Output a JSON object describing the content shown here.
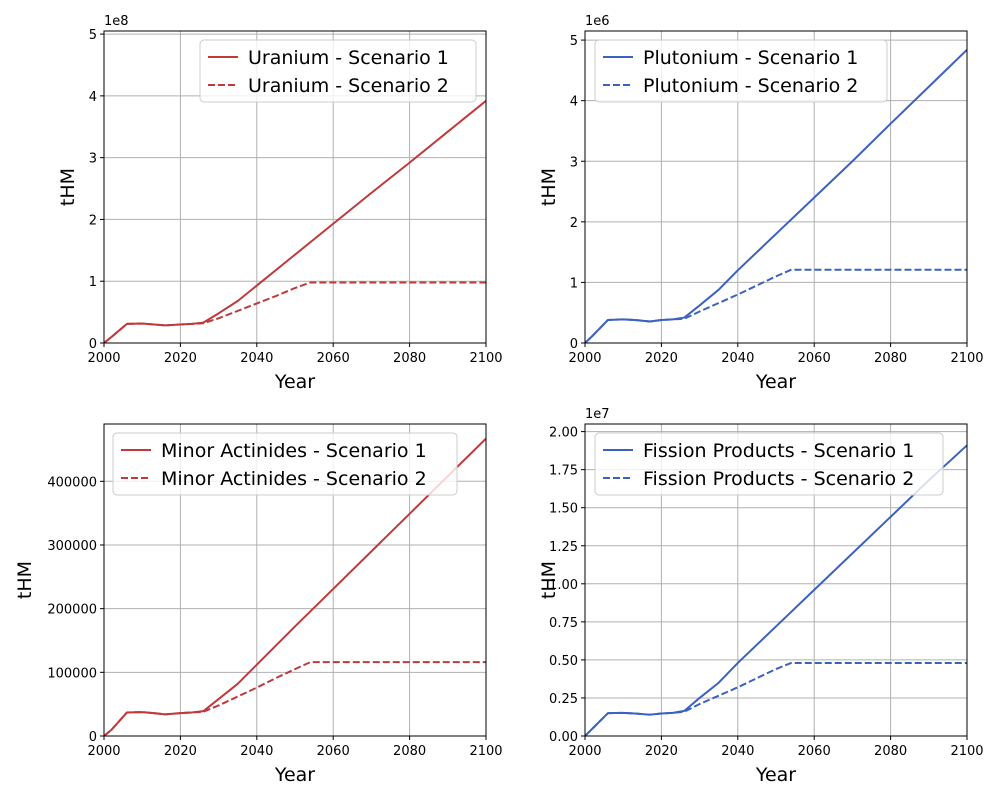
{
  "colors": {
    "red": "#c0393b",
    "blue": "#3b62c0"
  },
  "chart_data": [
    {
      "type": "line",
      "xlabel": "Year",
      "ylabel": "tHM",
      "xlim": [
        2000,
        2100
      ],
      "ylim": [
        0,
        505000000
      ],
      "x_ticks": [
        2000,
        2020,
        2040,
        2060,
        2080,
        2100
      ],
      "x_tick_labels": [
        "2000",
        "2020",
        "2040",
        "2060",
        "2080",
        "2100"
      ],
      "y_ticks": [
        0,
        100000000,
        200000000,
        300000000,
        400000000,
        500000000
      ],
      "y_tick_labels": [
        "0",
        "1",
        "2",
        "3",
        "4",
        "5"
      ],
      "y_offset_label": "1e8",
      "grid": true,
      "legend_position": "top-right",
      "color": "#c0393b",
      "series": [
        {
          "name": "Uranium - Scenario 1",
          "style": "solid",
          "x": [
            2000,
            2002,
            2006,
            2010,
            2013,
            2016,
            2020,
            2023,
            2026,
            2030,
            2035,
            2040,
            2050,
            2060,
            2070,
            2080,
            2090,
            2100
          ],
          "y": [
            0,
            10000000,
            31000000,
            31500000,
            30000000,
            28500000,
            30000000,
            31000000,
            33000000,
            48000000,
            68000000,
            93000000,
            143000000,
            193000000,
            243000000,
            292000000,
            342000000,
            392000000
          ]
        },
        {
          "name": "Uranium - Scenario 2",
          "style": "dashed",
          "x": [
            2000,
            2002,
            2006,
            2010,
            2013,
            2016,
            2020,
            2023,
            2026,
            2030,
            2035,
            2040,
            2045,
            2050,
            2054,
            2060,
            2070,
            2080,
            2090,
            2100
          ],
          "y": [
            0,
            10000000,
            31000000,
            31500000,
            30000000,
            28500000,
            30000000,
            31000000,
            32000000,
            40000000,
            52000000,
            64000000,
            76000000,
            89000000,
            98000000,
            98000000,
            98000000,
            98000000,
            98000000,
            98000000
          ]
        }
      ]
    },
    {
      "type": "line",
      "xlabel": "Year",
      "ylabel": "tHM",
      "xlim": [
        2000,
        2100
      ],
      "ylim": [
        0,
        5150000
      ],
      "x_ticks": [
        2000,
        2020,
        2040,
        2060,
        2080,
        2100
      ],
      "x_tick_labels": [
        "2000",
        "2020",
        "2040",
        "2060",
        "2080",
        "2100"
      ],
      "y_ticks": [
        0,
        1000000,
        2000000,
        3000000,
        4000000,
        5000000
      ],
      "y_tick_labels": [
        "0",
        "1",
        "2",
        "3",
        "4",
        "5"
      ],
      "y_offset_label": "1e6",
      "grid": true,
      "legend_position": "top-left",
      "color": "#3b62c0",
      "series": [
        {
          "name": "Plutonium - Scenario 1",
          "style": "solid",
          "x": [
            2000,
            2002,
            2006,
            2010,
            2013,
            2017,
            2020,
            2023,
            2026,
            2030,
            2035,
            2040,
            2050,
            2060,
            2070,
            2080,
            2090,
            2100
          ],
          "y": [
            0,
            120000,
            380000,
            390000,
            380000,
            355000,
            380000,
            390000,
            420000,
            620000,
            880000,
            1200000,
            1800000,
            2400000,
            3000000,
            3620000,
            4230000,
            4840000
          ]
        },
        {
          "name": "Plutonium - Scenario 2",
          "style": "dashed",
          "x": [
            2000,
            2002,
            2006,
            2010,
            2013,
            2017,
            2020,
            2023,
            2026,
            2030,
            2035,
            2040,
            2045,
            2050,
            2054,
            2060,
            2070,
            2080,
            2090,
            2100
          ],
          "y": [
            0,
            120000,
            380000,
            390000,
            380000,
            355000,
            380000,
            390000,
            400000,
            520000,
            660000,
            800000,
            950000,
            1100000,
            1210000,
            1210000,
            1210000,
            1210000,
            1210000,
            1210000
          ]
        }
      ]
    },
    {
      "type": "line",
      "xlabel": "Year",
      "ylabel": "tHM",
      "xlim": [
        2000,
        2100
      ],
      "ylim": [
        0,
        490000
      ],
      "x_ticks": [
        2000,
        2020,
        2040,
        2060,
        2080,
        2100
      ],
      "x_tick_labels": [
        "2000",
        "2020",
        "2040",
        "2060",
        "2080",
        "2100"
      ],
      "y_ticks": [
        0,
        100000,
        200000,
        300000,
        400000
      ],
      "y_tick_labels": [
        "0",
        "100000",
        "200000",
        "300000",
        "400000"
      ],
      "y_offset_label": "",
      "grid": true,
      "legend_position": "top-left",
      "color": "#c0393b",
      "series": [
        {
          "name": "Minor Actinides - Scenario 1",
          "style": "solid",
          "x": [
            2000,
            2002,
            2006,
            2010,
            2013,
            2016,
            2020,
            2023,
            2026,
            2030,
            2035,
            2040,
            2050,
            2060,
            2070,
            2080,
            2090,
            2100
          ],
          "y": [
            0,
            10000,
            37000,
            37500,
            36000,
            34000,
            36000,
            37000,
            39000,
            58000,
            82000,
            112000,
            172000,
            231000,
            290000,
            349000,
            408000,
            467000
          ]
        },
        {
          "name": "Minor Actinides - Scenario 2",
          "style": "dashed",
          "x": [
            2000,
            2002,
            2006,
            2010,
            2013,
            2016,
            2020,
            2023,
            2026,
            2030,
            2035,
            2040,
            2045,
            2050,
            2054,
            2060,
            2070,
            2080,
            2090,
            2100
          ],
          "y": [
            0,
            10000,
            37000,
            37500,
            36000,
            34000,
            36000,
            37000,
            38000,
            48000,
            62000,
            76000,
            91000,
            105000,
            116000,
            116000,
            116000,
            116000,
            116000,
            116000
          ]
        }
      ]
    },
    {
      "type": "line",
      "xlabel": "Year",
      "ylabel": "tHM",
      "xlim": [
        2000,
        2100
      ],
      "ylim": [
        0,
        20500000
      ],
      "x_ticks": [
        2000,
        2020,
        2040,
        2060,
        2080,
        2100
      ],
      "x_tick_labels": [
        "2000",
        "2020",
        "2040",
        "2060",
        "2080",
        "2100"
      ],
      "y_ticks": [
        0,
        2500000,
        5000000,
        7500000,
        10000000,
        12500000,
        15000000,
        17500000,
        20000000
      ],
      "y_tick_labels": [
        "0.00",
        "0.25",
        "0.50",
        "0.75",
        "1.00",
        "1.25",
        "1.50",
        "1.75",
        "2.00"
      ],
      "y_offset_label": "1e7",
      "grid": true,
      "legend_position": "top-left",
      "color": "#3b62c0",
      "series": [
        {
          "name": "Fission Products - Scenario 1",
          "style": "solid",
          "x": [
            2000,
            2002,
            2006,
            2010,
            2013,
            2017,
            2020,
            2023,
            2026,
            2030,
            2035,
            2040,
            2050,
            2060,
            2070,
            2080,
            2090,
            2100
          ],
          "y": [
            0,
            500000,
            1500000,
            1520000,
            1480000,
            1400000,
            1480000,
            1520000,
            1650000,
            2500000,
            3500000,
            4800000,
            7200000,
            9600000,
            12000000,
            14400000,
            16800000,
            19100000
          ]
        },
        {
          "name": "Fission Products - Scenario 2",
          "style": "dashed",
          "x": [
            2000,
            2002,
            2006,
            2010,
            2013,
            2017,
            2020,
            2023,
            2026,
            2030,
            2035,
            2040,
            2045,
            2050,
            2054,
            2060,
            2070,
            2080,
            2090,
            2100
          ],
          "y": [
            0,
            500000,
            1500000,
            1520000,
            1480000,
            1400000,
            1480000,
            1520000,
            1600000,
            2100000,
            2650000,
            3200000,
            3800000,
            4400000,
            4800000,
            4800000,
            4800000,
            4800000,
            4800000,
            4800000
          ]
        }
      ]
    }
  ]
}
